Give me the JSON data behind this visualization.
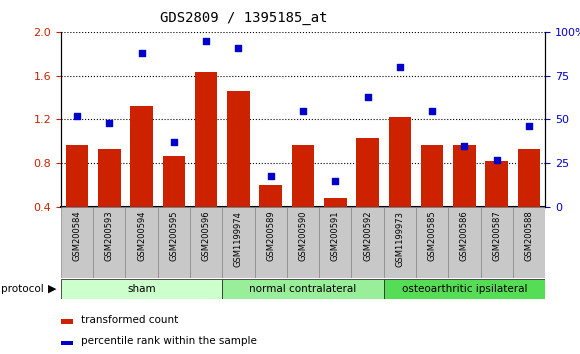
{
  "title": "GDS2809 / 1395185_at",
  "samples": [
    "GSM200584",
    "GSM200593",
    "GSM200594",
    "GSM200595",
    "GSM200596",
    "GSM1199974",
    "GSM200589",
    "GSM200590",
    "GSM200591",
    "GSM200592",
    "GSM1199973",
    "GSM200585",
    "GSM200586",
    "GSM200587",
    "GSM200588"
  ],
  "bar_values": [
    0.97,
    0.93,
    1.32,
    0.87,
    1.63,
    1.46,
    0.6,
    0.97,
    0.48,
    1.03,
    1.22,
    0.97,
    0.97,
    0.82,
    0.93
  ],
  "dot_values": [
    52,
    48,
    88,
    37,
    95,
    91,
    18,
    55,
    15,
    63,
    80,
    55,
    35,
    27,
    46
  ],
  "bar_color": "#cc2200",
  "dot_color": "#0000cc",
  "groups": [
    {
      "label": "sham",
      "start": 0,
      "end": 5,
      "color": "#ccffcc"
    },
    {
      "label": "normal contralateral",
      "start": 5,
      "end": 10,
      "color": "#99ee99"
    },
    {
      "label": "osteoarthritic ipsilateral",
      "start": 10,
      "end": 15,
      "color": "#55dd55"
    }
  ],
  "ylim_left": [
    0.4,
    2.0
  ],
  "ylim_right": [
    0,
    100
  ],
  "yticks_left": [
    0.4,
    0.8,
    1.2,
    1.6,
    2.0
  ],
  "yticks_right": [
    0,
    25,
    50,
    75,
    100
  ],
  "ytick_labels_right": [
    "0",
    "25",
    "50",
    "75",
    "100%"
  ],
  "protocol_label": "protocol",
  "legend_bar": "transformed count",
  "legend_dot": "percentile rank within the sample",
  "plot_bg": "#ffffff",
  "title_fontsize": 10,
  "axis_label_color_left": "#cc2200",
  "axis_label_color_right": "#0000cc",
  "xtick_bg": "#c8c8c8",
  "grid_color": "#000000"
}
